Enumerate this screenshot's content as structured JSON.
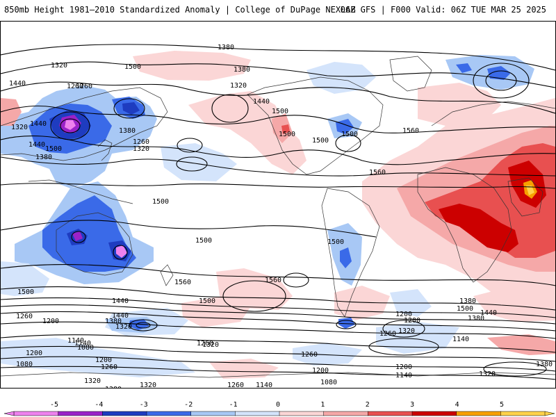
{
  "header": {
    "title": "850mb Height 1981–2010 Standardized Anomaly | College of DuPage NEXLAB",
    "run_info": "06Z GFS | F000 Valid: 06Z TUE MAR 25 2025"
  },
  "colors": {
    "anom_m5": "#ee82ee",
    "anom_m4": "#9a22c8",
    "anom_m3": "#1e3cc0",
    "anom_m2": "#3a6ae8",
    "anom_m1": "#a8c8f5",
    "anom_m05": "#d4e4fb",
    "anom_p05": "#fbd6d6",
    "anom_p1": "#f5a8a8",
    "anom_p2": "#e85050",
    "anom_p3": "#cc0000",
    "anom_p4": "#f7a000",
    "anom_p5": "#ffd24a",
    "contour": "#000000",
    "coast": "#333333"
  },
  "contour_labels": [
    "1380",
    "1320",
    "1260",
    "1440",
    "1500",
    "1380",
    "1320",
    "1260",
    "1320",
    "1380",
    "1440",
    "1440",
    "1500",
    "1380",
    "1320",
    "1260",
    "1500",
    "1440",
    "1500",
    "1500",
    "1560",
    "1500",
    "1560",
    "1500",
    "1560",
    "1500",
    "1500",
    "1560",
    "1500",
    "1440",
    "1380",
    "1320",
    "1260",
    "1200",
    "1140",
    "1080",
    "1200",
    "1260",
    "1320",
    "1380",
    "1440",
    "1500",
    "1320",
    "1260",
    "1140",
    "1200",
    "1080",
    "1140",
    "1080",
    "1200",
    "1260",
    "1200",
    "1320",
    "1380",
    "1140",
    "1260",
    "1140",
    "1200",
    "1380",
    "1320",
    "1320",
    "1200",
    "1260",
    "1500",
    "1440",
    "1380"
  ],
  "legend": {
    "tick_labels": [
      "-5",
      "-4",
      "-3",
      "-2",
      "-1",
      "0",
      "1",
      "2",
      "3",
      "4",
      "5"
    ]
  }
}
